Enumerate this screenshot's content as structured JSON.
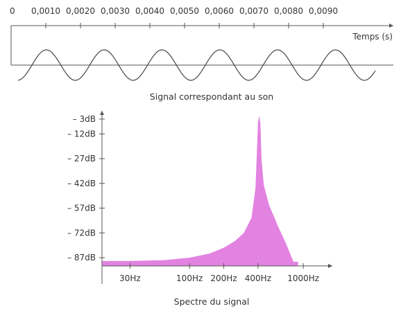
{
  "chart_data": [
    {
      "type": "line",
      "title": "Signal correspondant au son",
      "xlabel": "Temps (s)",
      "ylabel": "",
      "xlim": [
        0,
        0.01
      ],
      "x_ticks": [
        "0",
        "0,0010",
        "0,0020",
        "0,0030",
        "0,0040",
        "0,0050",
        "0,0060",
        "0,0070",
        "0,0080",
        "0,0090"
      ],
      "x_tick_values": [
        0,
        0.001,
        0.002,
        0.003,
        0.004,
        0.005,
        0.006,
        0.007,
        0.008,
        0.009
      ],
      "series": [
        {
          "frequency_hz": 600,
          "amplitude": 1,
          "x_start": 0.0002,
          "x_end": 0.0105,
          "phase_cycles": 0.64
        }
      ],
      "grid": false,
      "line_color": "#444444"
    },
    {
      "type": "area",
      "title": "Spectre du signal",
      "xlabel": "",
      "ylabel": "",
      "x_scale": "log",
      "xlim": [
        17,
        1800
      ],
      "ylim": [
        -92,
        2
      ],
      "x_ticks": [
        "30Hz",
        "100Hz",
        "200Hz",
        "400Hz",
        "1000Hz"
      ],
      "x_tick_values": [
        30,
        100,
        200,
        400,
        1000
      ],
      "y_ticks": [
        "– 3dB",
        "– 12dB",
        "– 27dB",
        "– 42dB",
        "– 57dB",
        "– 72dB",
        "– 87dB"
      ],
      "y_tick_values": [
        -3,
        -12,
        -27,
        -42,
        -57,
        -72,
        -87
      ],
      "x": [
        17,
        30,
        60,
        100,
        150,
        200,
        250,
        300,
        350,
        380,
        400,
        410,
        420,
        430,
        450,
        500,
        600,
        700,
        820,
        880,
        900
      ],
      "y": [
        -89,
        -89,
        -88.5,
        -87,
        -84.5,
        -81,
        -77,
        -72,
        -63,
        -45,
        -5,
        -1,
        -6,
        -28,
        -43,
        -55,
        -68,
        -78,
        -89.5,
        -89.5,
        -89.5
      ],
      "peak": {
        "x": 410,
        "y": -1
      },
      "grid": false,
      "fill_color": "#e383e1"
    }
  ]
}
